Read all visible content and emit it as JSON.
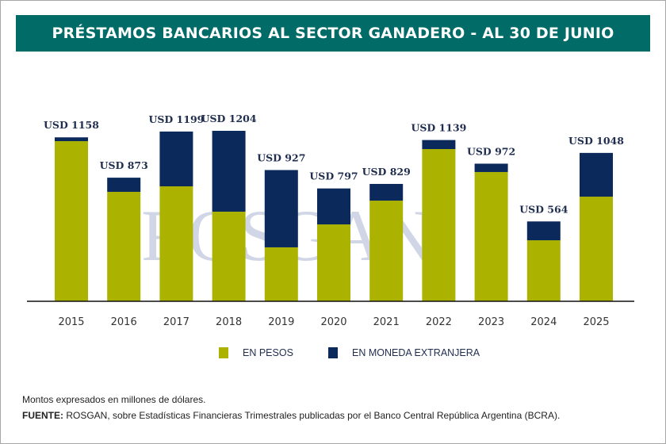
{
  "header": {
    "title": "PRÉSTAMOS BANCARIOS AL SECTOR GANADERO - AL 30 DE JUNIO"
  },
  "watermark": {
    "text": "ROSGAN"
  },
  "legend": [
    {
      "label": "EN PESOS",
      "color": "#abb300"
    },
    {
      "label": "EN MONEDA EXTRANJERA",
      "color": "#0b2a5b"
    }
  ],
  "footer": {
    "note": "Montos expresados en millones de dólares.",
    "source_label": "FUENTE:",
    "source_text": " ROSGAN, sobre Estadísticas Financieras Trimestrales publicadas por el Banco Central República Argentina (BCRA)."
  },
  "chart_data": {
    "type": "bar",
    "stacked": true,
    "title": "PRÉSTAMOS BANCARIOS AL SECTOR GANADERO - AL 30 DE JUNIO",
    "xlabel": "",
    "ylabel": "",
    "unit_note": "Montos expresados en millones de dólares.",
    "categories": [
      "2015",
      "2016",
      "2017",
      "2018",
      "2019",
      "2020",
      "2021",
      "2022",
      "2023",
      "2024",
      "2025"
    ],
    "series": [
      {
        "name": "EN PESOS",
        "color": "#abb300",
        "values": [
          1131,
          773,
          812,
          633,
          381,
          543,
          711,
          1075,
          913,
          431,
          739
        ]
      },
      {
        "name": "EN MONEDA EXTRANJERA",
        "color": "#0b2a5b",
        "values": [
          27,
          100,
          387,
          571,
          546,
          254,
          118,
          64,
          59,
          133,
          309
        ]
      }
    ],
    "totals": [
      1158,
      873,
      1199,
      1204,
      927,
      797,
      829,
      1139,
      972,
      564,
      1048
    ],
    "total_labels": [
      "USD 1158",
      "USD 873",
      "USD 1199",
      "USD 1204",
      "USD 927",
      "USD 797",
      "USD 829",
      "USD 1139",
      "USD 972",
      "USD 564",
      "USD 1048"
    ],
    "ylim": [
      0,
      1204
    ],
    "grid": false,
    "legend_position": "bottom"
  }
}
